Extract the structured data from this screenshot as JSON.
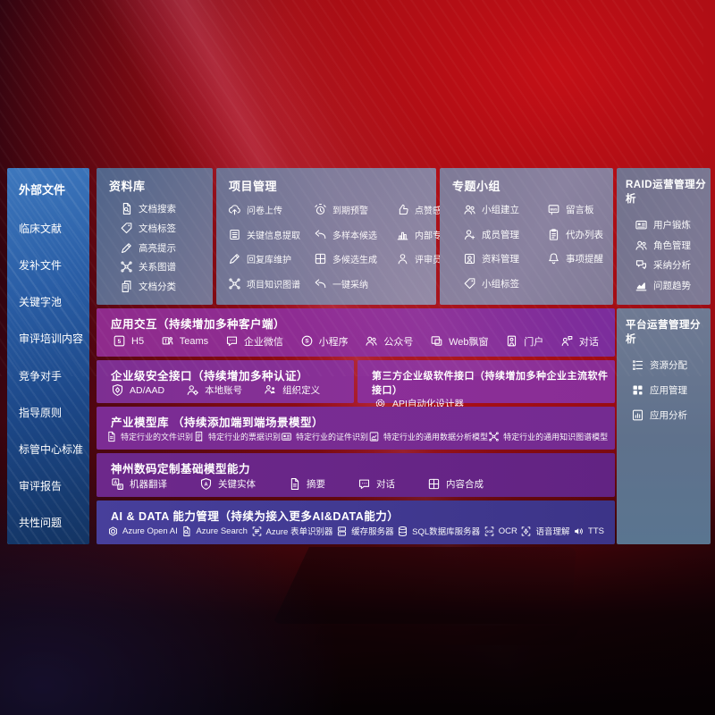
{
  "colors": {
    "background_red": "#a90e15",
    "sidebar_blue": "#2f66ad",
    "band_purple": "#8e2d95",
    "band_indigo": "#433c97",
    "panel_slate": "#6f7390"
  },
  "sidebar": {
    "title": "外部文件",
    "items": [
      "临床文献",
      "发补文件",
      "关键字池",
      "审评培训内容",
      "竞争对手",
      "指导原则",
      "标管中心标准",
      "审评报告",
      "共性问题"
    ]
  },
  "panels": {
    "library": {
      "title": "资料库",
      "items": [
        {
          "label": "文档搜索",
          "icon": "docsearch"
        },
        {
          "label": "文档标签",
          "icon": "tag"
        },
        {
          "label": "高亮提示",
          "icon": "pencil"
        },
        {
          "label": "关系图谱",
          "icon": "graph"
        },
        {
          "label": "文档分类",
          "icon": "doccopy"
        }
      ]
    },
    "project": {
      "title": "项目管理",
      "items": [
        {
          "label": "问卷上传",
          "icon": "cloudup"
        },
        {
          "label": "到期预警",
          "icon": "alarm"
        },
        {
          "label": "点赞感谢",
          "icon": "thumb"
        },
        {
          "label": "关键信息提取",
          "icon": "docscan"
        },
        {
          "label": "多样本候选",
          "icon": "reply"
        },
        {
          "label": "内部专家排名",
          "icon": "bars"
        },
        {
          "label": "回复库维护",
          "icon": "pencil"
        },
        {
          "label": "多候选生成",
          "icon": "grid4"
        },
        {
          "label": "评审员画像",
          "icon": "person"
        },
        {
          "label": "项目知识图谱",
          "icon": "graph"
        },
        {
          "label": "一键采纳",
          "icon": "reply"
        }
      ]
    },
    "group": {
      "title": "专题小组",
      "items": [
        {
          "label": "小组建立",
          "icon": "people"
        },
        {
          "label": "留言板",
          "icon": "board"
        },
        {
          "label": "成员管理",
          "icon": "personplus"
        },
        {
          "label": "代办列表",
          "icon": "clipboard"
        },
        {
          "label": "资料管理",
          "icon": "album"
        },
        {
          "label": "事项提醒",
          "icon": "bell"
        },
        {
          "label": "小组标签",
          "icon": "tag"
        }
      ]
    },
    "raid": {
      "title": "RAID运营管理分析",
      "items": [
        {
          "label": "用户锻炼",
          "icon": "idcard"
        },
        {
          "label": "角色管理",
          "icon": "people"
        },
        {
          "label": "采纳分析",
          "icon": "chatqa"
        },
        {
          "label": "问题趋势",
          "icon": "trend"
        }
      ]
    },
    "platform": {
      "title": "平台运营管理分析",
      "items": [
        {
          "label": "资源分配",
          "icon": "list"
        },
        {
          "label": "应用管理",
          "icon": "apps"
        },
        {
          "label": "应用分析",
          "icon": "report"
        }
      ]
    },
    "interaction": {
      "title": "应用交互（持续增加多种客户端）",
      "items": [
        {
          "label": "H5",
          "icon": "h5"
        },
        {
          "label": "Teams",
          "icon": "teams"
        },
        {
          "label": "企业微信",
          "icon": "chat"
        },
        {
          "label": "小程序",
          "icon": "mini"
        },
        {
          "label": "公众号",
          "icon": "people"
        },
        {
          "label": "Web飘窗",
          "icon": "window"
        },
        {
          "label": "门户",
          "icon": "portal"
        },
        {
          "label": "对话",
          "icon": "chatduo"
        }
      ]
    },
    "security": {
      "title": "企业级安全接口（持续增加多种认证）",
      "items": [
        {
          "label": "AD/AAD",
          "icon": "shield"
        },
        {
          "label": "本地账号",
          "icon": "persongear"
        },
        {
          "label": "组织定义",
          "icon": "org"
        }
      ]
    },
    "thirdparty": {
      "title": "第三方企业级软件接口（持续增加多种企业主流软件接口）",
      "items": [
        {
          "label": "API自动化设计器",
          "icon": "gear"
        }
      ]
    },
    "industry": {
      "title": "产业模型库 （持续添加端到端场景模型）",
      "items": [
        {
          "label": "特定行业的文件识别",
          "icon": "doc"
        },
        {
          "label": "特定行业的票据识别",
          "icon": "receipt"
        },
        {
          "label": "特定行业的证件识别",
          "icon": "idcard"
        },
        {
          "label": "特定行业的通用数据分析模型",
          "icon": "chartdoc"
        },
        {
          "label": "特定行业的通用知识图谱模型",
          "icon": "graph"
        }
      ]
    },
    "basemodel": {
      "title": "神州数码定制基础模型能力",
      "items": [
        {
          "label": "机器翻译",
          "icon": "translate"
        },
        {
          "label": "关键实体",
          "icon": "shielda"
        },
        {
          "label": "摘要",
          "icon": "doc"
        },
        {
          "label": "对话",
          "icon": "chat"
        },
        {
          "label": "内容合成",
          "icon": "grid4"
        }
      ]
    },
    "aidata": {
      "title": "AI & DATA 能力管理（持续为接入更多AI&DATA能力）",
      "items": [
        {
          "label": "Azure Open AI",
          "icon": "openai"
        },
        {
          "label": "Azure Search",
          "icon": "docsearch"
        },
        {
          "label": "Azure 表单识别器",
          "icon": "form"
        },
        {
          "label": "缓存服务器",
          "icon": "server"
        },
        {
          "label": "SQL数据库服务器",
          "icon": "database"
        },
        {
          "label": "OCR",
          "icon": "ocr"
        },
        {
          "label": "语音理解",
          "icon": "speech"
        },
        {
          "label": "TTS",
          "icon": "tts"
        }
      ]
    }
  }
}
